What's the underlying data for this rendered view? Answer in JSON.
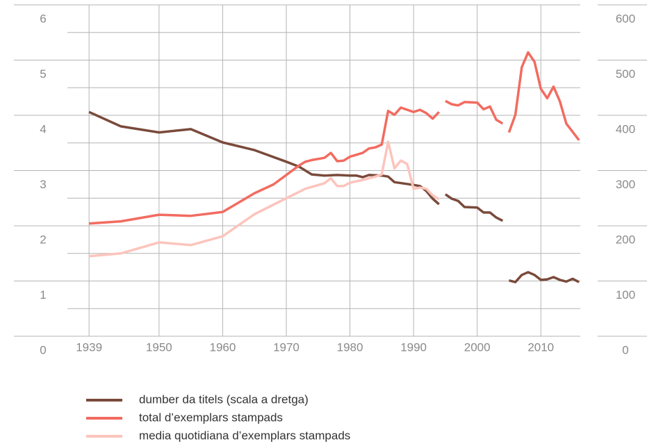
{
  "chart_data": {
    "type": "line",
    "xlim": [
      1935.6,
      2016.2
    ],
    "xticks": [
      1939,
      1950,
      1960,
      1970,
      1980,
      1990,
      2000,
      2010
    ],
    "ylim": [
      0,
      6
    ],
    "yticks": [
      0,
      1,
      2,
      3,
      4,
      5,
      6
    ],
    "y_minor_ticks": [
      0.5,
      1.5,
      2.5,
      3.5,
      4.5,
      5.5
    ],
    "y2lim": [
      0,
      600
    ],
    "y2ticks": [
      0,
      100,
      200,
      300,
      400,
      500,
      600
    ],
    "grid": true,
    "series": [
      {
        "name": "dumber da titels (scala a dretga)",
        "color": "#7a4a3b",
        "axis": "y2",
        "x": [
          1939,
          1944,
          1950,
          1955,
          1960,
          1965,
          1970,
          1972,
          1974,
          1976,
          1978,
          1980,
          1981,
          1982,
          1983,
          1985,
          1986,
          1987,
          1990,
          1991,
          1992,
          1993,
          1994,
          null,
          1995,
          1996,
          1997,
          1998,
          2000,
          2001,
          2002,
          2003,
          2004,
          null,
          2005,
          2006,
          2007,
          2008,
          2009,
          2010,
          2011,
          2012,
          2013,
          2014,
          2015,
          2016
        ],
        "values": [
          406,
          380,
          369,
          375,
          351,
          337,
          316,
          307,
          293,
          291,
          292,
          291,
          291,
          288,
          292,
          291,
          289,
          279,
          274,
          272,
          263,
          249,
          239,
          null,
          257,
          249,
          245,
          234,
          233,
          224,
          224,
          215,
          209,
          null,
          101,
          98,
          111,
          116,
          111,
          102,
          103,
          107,
          102,
          99,
          104,
          98
        ]
      },
      {
        "name": "total d’exemplars stampads",
        "color": "#f26b60",
        "x": [
          1939,
          1944,
          1950,
          1955,
          1960,
          1965,
          1968,
          1970,
          1972,
          1973,
          1974,
          1976,
          1977,
          1978,
          1979,
          1980,
          1982,
          1983,
          1984,
          1985,
          1986,
          1987,
          1988,
          1990,
          1991,
          1992,
          1993,
          1994,
          null,
          1995,
          1996,
          1997,
          1998,
          2000,
          2001,
          2002,
          2003,
          2004,
          null,
          2005,
          2006,
          2007,
          2008,
          2009,
          2010,
          2011,
          2012,
          2013,
          2014,
          2015,
          2016
        ],
        "values": [
          2.04,
          2.08,
          2.2,
          2.18,
          2.25,
          2.59,
          2.75,
          2.92,
          3.09,
          3.16,
          3.19,
          3.23,
          3.32,
          3.17,
          3.18,
          3.25,
          3.32,
          3.4,
          3.42,
          3.47,
          4.08,
          4.01,
          4.14,
          4.06,
          4.1,
          4.04,
          3.94,
          4.06,
          null,
          4.26,
          4.2,
          4.18,
          4.24,
          4.23,
          4.11,
          4.16,
          3.92,
          3.85,
          null,
          3.69,
          4.01,
          4.87,
          5.14,
          4.97,
          4.48,
          4.31,
          4.52,
          4.25,
          3.85,
          3.7,
          3.55
        ]
      },
      {
        "name": "media quotidiana d’exemplars stampads",
        "color": "#fcc4bc",
        "x": [
          1939,
          1944,
          1950,
          1955,
          1960,
          1965,
          1970,
          1973,
          1976,
          1977,
          1978,
          1979,
          1980,
          1982,
          1984,
          1985,
          1986,
          1987,
          1988,
          1989,
          1990,
          1991,
          1992,
          1993,
          1994
        ],
        "values": [
          1.45,
          1.5,
          1.7,
          1.65,
          1.81,
          2.21,
          2.5,
          2.67,
          2.77,
          2.86,
          2.72,
          2.72,
          2.78,
          2.83,
          2.89,
          2.93,
          3.52,
          3.04,
          3.18,
          3.12,
          2.67,
          2.69,
          2.67,
          2.55,
          2.48
        ]
      }
    ]
  }
}
